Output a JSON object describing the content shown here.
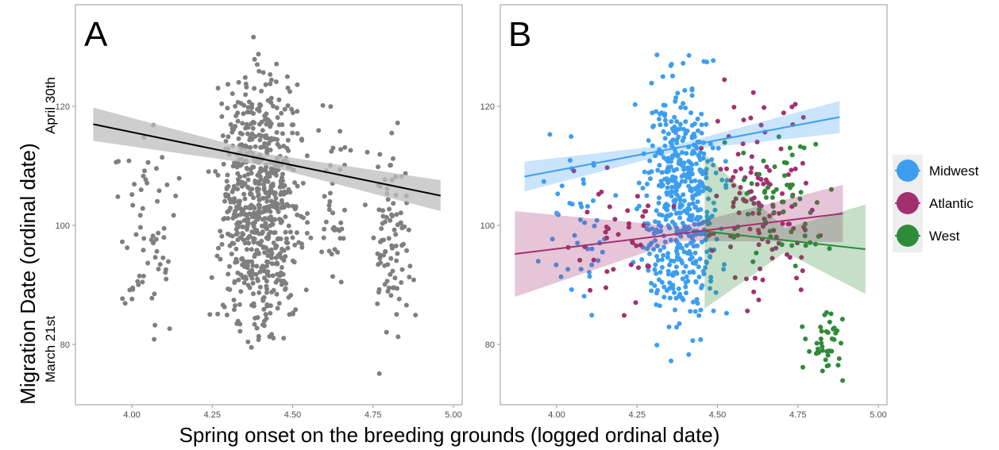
{
  "figure": {
    "y_axis_title": "Migration Date (ordinal date)",
    "x_axis_title": "Spring onset on the breeding grounds (logged ordinal date)",
    "annotation_top": "April 30th",
    "annotation_bottom": "March 21st"
  },
  "chart_data": [
    {
      "panel": "A",
      "type": "scatter",
      "title": "",
      "xlabel": "Spring onset on the breeding grounds (logged ordinal date)",
      "ylabel": "Migration Date (ordinal date)",
      "xlim": [
        3.83,
        5.0
      ],
      "ylim": [
        72,
        135
      ],
      "x_ticks": [
        "4.00",
        "4.25",
        "4.50",
        "4.75",
        "5.00"
      ],
      "y_ticks": [
        "80",
        "100",
        "120"
      ],
      "grid": false,
      "point_color": "#7f7f7f",
      "fit": {
        "color": "#000000",
        "ribbon_color": "#bdbdbd",
        "x": [
          3.88,
          4.96
        ],
        "y": [
          117,
          105
        ],
        "ci_halfwidth_ends": [
          2.8,
          2.6
        ],
        "ci_halfwidth_mid": 1.0
      },
      "clusters": [
        {
          "x_range": [
            3.88,
            4.2
          ],
          "y_range": [
            75,
            123
          ],
          "n": 65
        },
        {
          "x_range": [
            4.22,
            4.58
          ],
          "y_range": [
            74,
            134
          ],
          "n": 700
        },
        {
          "x_range": [
            4.56,
            4.7
          ],
          "y_range": [
            84,
            128
          ],
          "n": 40
        },
        {
          "x_range": [
            4.7,
            4.92
          ],
          "y_range": [
            73,
            122
          ],
          "n": 95
        }
      ]
    },
    {
      "panel": "B",
      "type": "scatter",
      "title": "",
      "xlabel": "Spring onset on the breeding grounds (logged ordinal date)",
      "ylabel": "Migration Date (ordinal date)",
      "xlim": [
        3.83,
        5.0
      ],
      "ylim": [
        72,
        135
      ],
      "x_ticks": [
        "4.00",
        "4.25",
        "4.50",
        "4.75",
        "5.00"
      ],
      "y_ticks": [
        "80",
        "100",
        "120"
      ],
      "grid": false,
      "legend": "right",
      "series": [
        {
          "name": "Midwest",
          "color": "#3d9ef0",
          "fit": {
            "x": [
              3.9,
              4.88
            ],
            "y": [
              108.2,
              118.2
            ],
            "ci_halfwidth_ends": [
              2.5,
              2.7
            ],
            "ci_halfwidth_mid": 0.6
          },
          "clusters": [
            {
              "x_range": [
                3.9,
                4.2
              ],
              "y_range": [
                78,
                122
              ],
              "n": 45
            },
            {
              "x_range": [
                4.22,
                4.56
              ],
              "y_range": [
                73,
                134
              ],
              "n": 520
            }
          ]
        },
        {
          "name": "Atlantic",
          "color": "#a3306e",
          "fit": {
            "x": [
              3.87,
              4.89
            ],
            "y": [
              95.2,
              102
            ],
            "ci_halfwidth_ends": [
              7.2,
              4.8
            ],
            "ci_halfwidth_mid": 1.2
          },
          "clusters": [
            {
              "x_range": [
                3.95,
                4.45
              ],
              "y_range": [
                77,
                118
              ],
              "n": 40
            },
            {
              "x_range": [
                4.42,
                4.85
              ],
              "y_range": [
                79,
                132
              ],
              "n": 120
            }
          ]
        },
        {
          "name": "West",
          "color": "#2e8b3a",
          "fit": {
            "x": [
              4.46,
              4.96
            ],
            "y": [
              99,
              96
            ],
            "ci_halfwidth_ends": [
              13,
              7.5
            ],
            "ci_halfwidth_mid": 2.0
          },
          "clusters": [
            {
              "x_range": [
                4.48,
                4.93
              ],
              "y_range": [
                86,
                123
              ],
              "n": 60
            },
            {
              "x_range": [
                4.75,
                4.92
              ],
              "y_range": [
                73,
                87
              ],
              "n": 40
            }
          ]
        }
      ]
    }
  ]
}
